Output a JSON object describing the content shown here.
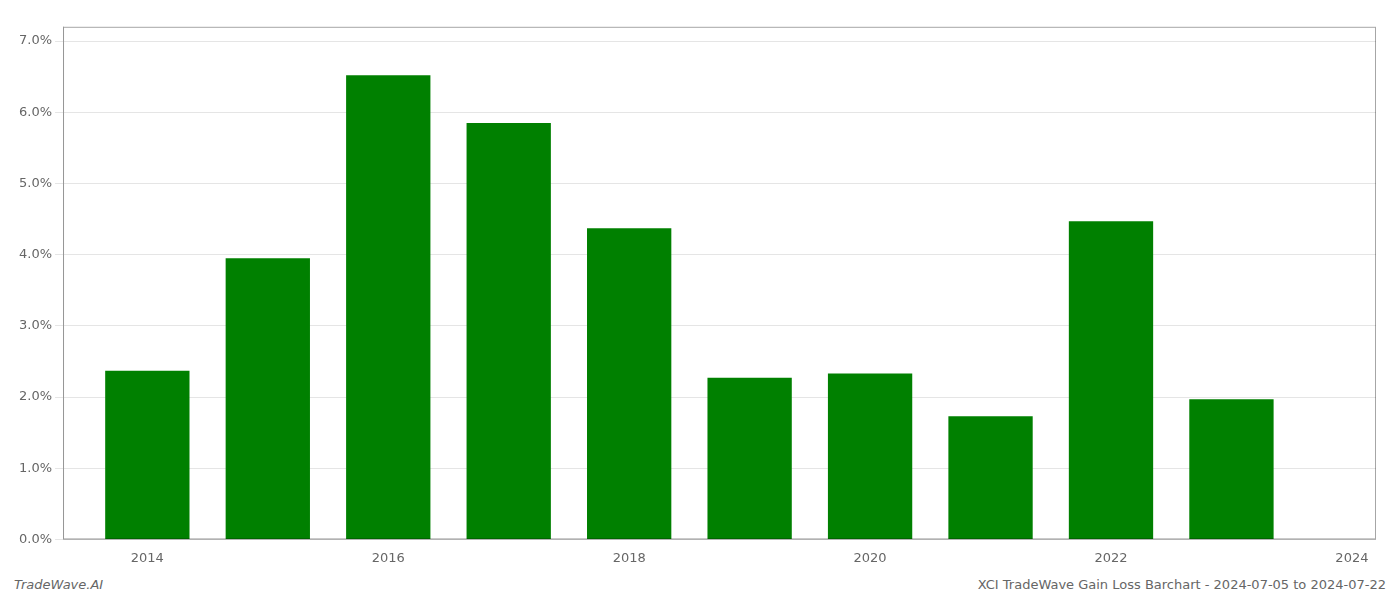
{
  "chart_data": {
    "type": "bar",
    "x": [
      2014,
      2015,
      2016,
      2017,
      2018,
      2019,
      2020,
      2021,
      2022,
      2023
    ],
    "values": [
      0.0237,
      0.0395,
      0.0652,
      0.0585,
      0.0437,
      0.0227,
      0.0233,
      0.0173,
      0.0447,
      0.0197
    ],
    "color": "#008000",
    "xlim": [
      2013.3,
      2024.2
    ],
    "xticks": [
      2014,
      2016,
      2018,
      2020,
      2022,
      2024
    ],
    "ylim": [
      0,
      0.072
    ],
    "yticks": [
      {
        "value": 0.0,
        "label": "0.0%"
      },
      {
        "value": 0.01,
        "label": "1.0%"
      },
      {
        "value": 0.02,
        "label": "2.0%"
      },
      {
        "value": 0.03,
        "label": "3.0%"
      },
      {
        "value": 0.04,
        "label": "4.0%"
      },
      {
        "value": 0.05,
        "label": "5.0%"
      },
      {
        "value": 0.06,
        "label": "6.0%"
      },
      {
        "value": 0.07,
        "label": "7.0%"
      }
    ],
    "grid": true,
    "annotations": [
      "TradeWave.AI",
      "XCI TradeWave Gain Loss Barchart - 2024-07-05 to 2024-07-22"
    ]
  }
}
